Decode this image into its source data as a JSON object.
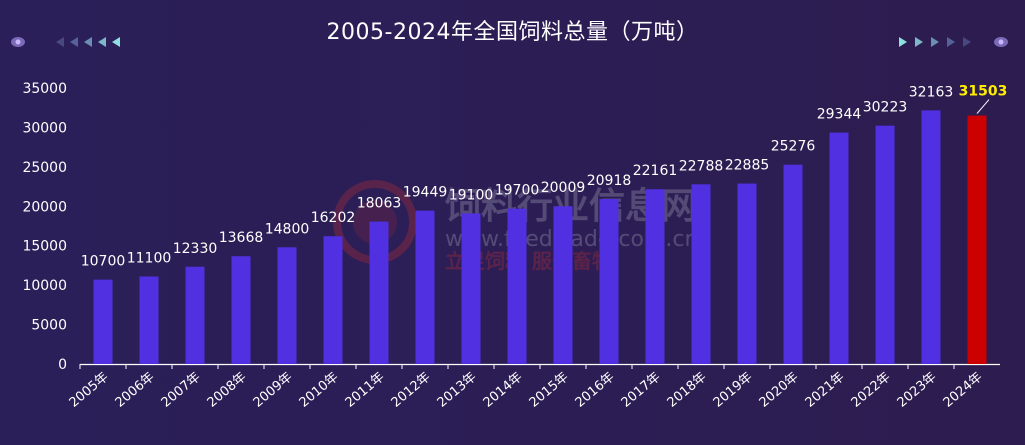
{
  "title": "2005-2024年全国饲料总量（万吨）",
  "watermark": {
    "brand": "饲料行业信息网",
    "url": "www.feedtrade.com.cn",
    "slogan": "立足饲料   服务畜牧"
  },
  "colors": {
    "bar": "#5030e0",
    "highlight_bar": "#cc0000",
    "highlight_label": "#ffee00",
    "label": "#ffffff",
    "axis": "#ffffff"
  },
  "chart_data": {
    "type": "bar",
    "title": "2005-2024年全国饲料总量（万吨）",
    "xlabel": "",
    "ylabel": "",
    "ylim": [
      0,
      35000
    ],
    "yticks": [
      0,
      5000,
      10000,
      15000,
      20000,
      25000,
      30000,
      35000
    ],
    "grid": false,
    "categories": [
      "2005年",
      "2006年",
      "2007年",
      "2008年",
      "2009年",
      "2010年",
      "2011年",
      "2012年",
      "2013年",
      "2014年",
      "2015年",
      "2016年",
      "2017年",
      "2018年",
      "2019年",
      "2020年",
      "2021年",
      "2022年",
      "2023年",
      "2024年"
    ],
    "values": [
      10700,
      11100,
      12330,
      13668,
      14800,
      16202,
      18063,
      19449,
      19100,
      19700,
      20009,
      20918,
      22161,
      22788,
      22885,
      25276,
      29344,
      30223,
      32163,
      31503
    ],
    "highlight_index": 19
  }
}
